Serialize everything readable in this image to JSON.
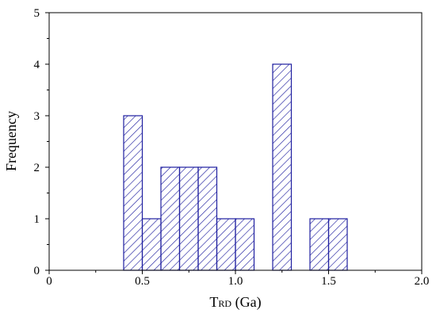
{
  "chart_data": {
    "type": "bar",
    "title": "",
    "xlabel_main": "T",
    "xlabel_subscript": "RD",
    "xlabel_rest": " (Ga)",
    "ylabel": "Frequency",
    "xlim": [
      0,
      2.0
    ],
    "ylim": [
      0,
      5
    ],
    "bin_width": 0.1,
    "x_ticks": [
      {
        "value": 0,
        "label": "0"
      },
      {
        "value": 0.5,
        "label": "0.5"
      },
      {
        "value": 1.0,
        "label": "1.0"
      },
      {
        "value": 1.5,
        "label": "1.5"
      },
      {
        "value": 2.0,
        "label": "2.0"
      }
    ],
    "x_minor_ticks": [
      0.25,
      0.75,
      1.25,
      1.75
    ],
    "y_ticks": [
      {
        "value": 0,
        "label": "0"
      },
      {
        "value": 1,
        "label": "1"
      },
      {
        "value": 2,
        "label": "2"
      },
      {
        "value": 3,
        "label": "3"
      },
      {
        "value": 4,
        "label": "4"
      },
      {
        "value": 5,
        "label": "5"
      }
    ],
    "y_minor_ticks": [
      0.5,
      1.5,
      2.5,
      3.5,
      4.5
    ],
    "bins": [
      {
        "start": 0.4,
        "end": 0.5,
        "value": 3
      },
      {
        "start": 0.5,
        "end": 0.6,
        "value": 1
      },
      {
        "start": 0.6,
        "end": 0.7,
        "value": 2
      },
      {
        "start": 0.7,
        "end": 0.8,
        "value": 2
      },
      {
        "start": 0.8,
        "end": 0.9,
        "value": 2
      },
      {
        "start": 0.9,
        "end": 1.0,
        "value": 1
      },
      {
        "start": 1.0,
        "end": 1.1,
        "value": 1
      },
      {
        "start": 1.2,
        "end": 1.3,
        "value": 4
      },
      {
        "start": 1.4,
        "end": 1.5,
        "value": 1
      },
      {
        "start": 1.5,
        "end": 1.6,
        "value": 1
      }
    ],
    "bar_color": "#1f1fa0",
    "hatch": "diagonal",
    "grid": false,
    "legend": false
  }
}
